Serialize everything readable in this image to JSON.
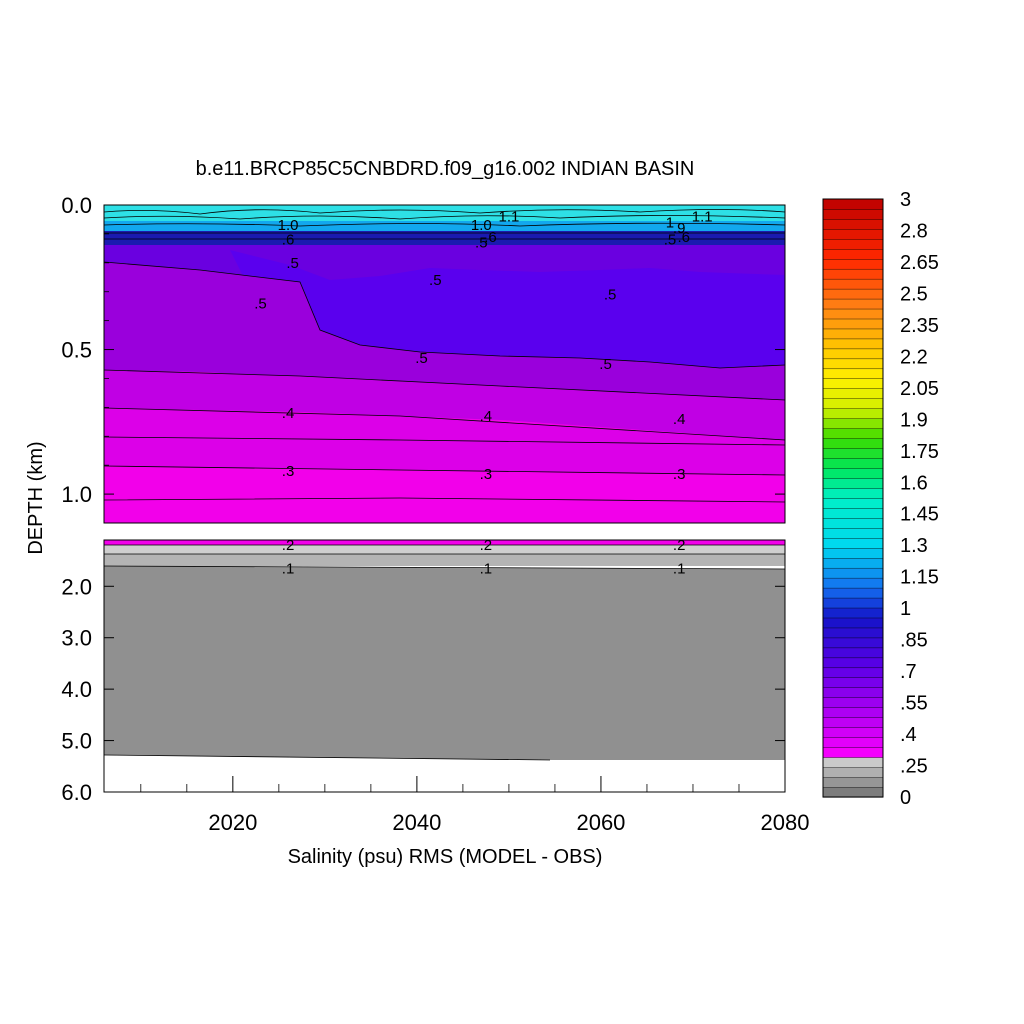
{
  "chart_data": {
    "type": "heatmap",
    "title": "b.e11.BRCP85C5CNBDRD.f09_g16.002 INDIAN BASIN",
    "xlabel": "Salinity (psu) RMS (MODEL - OBS)",
    "ylabel": "DEPTH (km)",
    "xlim": [
      2006,
      2080
    ],
    "x_ticks": [
      "2020",
      "2040",
      "2060",
      "2080"
    ],
    "upper_panel": {
      "ylim": [
        0.0,
        1.1
      ],
      "y_ticks": [
        "0.0",
        "0.5",
        "1.0"
      ]
    },
    "lower_panel": {
      "ylim": [
        1.1,
        6.0
      ],
      "y_ticks": [
        "2.0",
        "3.0",
        "4.0",
        "5.0",
        "6.0"
      ]
    },
    "colorbar": {
      "range": [
        0,
        3
      ],
      "labels": [
        "3",
        "2.8",
        "2.65",
        "2.5",
        "2.35",
        "2.2",
        "2.05",
        "1.9",
        "1.75",
        "1.6",
        "1.45",
        "1.3",
        "1.15",
        "1",
        ".85",
        ".7",
        ".55",
        ".4",
        ".25",
        "0"
      ]
    },
    "contour_labels": [
      {
        "x": 2026,
        "depth": 0.07,
        "text": "1.0"
      },
      {
        "x": 2026,
        "depth": 0.12,
        "text": ".6"
      },
      {
        "x": 2026.5,
        "depth": 0.2,
        "text": ".5"
      },
      {
        "x": 2023,
        "depth": 0.34,
        "text": ".5"
      },
      {
        "x": 2042,
        "depth": 0.26,
        "text": ".5"
      },
      {
        "x": 2047,
        "depth": 0.07,
        "text": "1.0"
      },
      {
        "x": 2050,
        "depth": 0.04,
        "text": "1.1"
      },
      {
        "x": 2047,
        "depth": 0.13,
        "text": ".5"
      },
      {
        "x": 2048,
        "depth": 0.11,
        "text": ".6"
      },
      {
        "x": 2061,
        "depth": 0.31,
        "text": ".5"
      },
      {
        "x": 2040.5,
        "depth": 0.53,
        "text": ".5"
      },
      {
        "x": 2060.5,
        "depth": 0.55,
        "text": ".5"
      },
      {
        "x": 2067.5,
        "depth": 0.06,
        "text": "1"
      },
      {
        "x": 2068.5,
        "depth": 0.08,
        "text": ".9"
      },
      {
        "x": 2071,
        "depth": 0.04,
        "text": "1.1"
      },
      {
        "x": 2067.5,
        "depth": 0.12,
        "text": ".5"
      },
      {
        "x": 2069,
        "depth": 0.11,
        "text": ".6"
      },
      {
        "x": 2026,
        "depth": 0.72,
        "text": ".4"
      },
      {
        "x": 2047.5,
        "depth": 0.73,
        "text": ".4"
      },
      {
        "x": 2068.5,
        "depth": 0.74,
        "text": ".4"
      },
      {
        "x": 2026,
        "depth": 0.92,
        "text": ".3"
      },
      {
        "x": 2047.5,
        "depth": 0.93,
        "text": ".3"
      },
      {
        "x": 2068.5,
        "depth": 0.93,
        "text": ".3"
      },
      {
        "x": 2026,
        "depth": 1.2,
        "text": ".2"
      },
      {
        "x": 2047.5,
        "depth": 1.2,
        "text": ".2"
      },
      {
        "x": 2068.5,
        "depth": 1.2,
        "text": ".2"
      },
      {
        "x": 2026,
        "depth": 1.65,
        "text": ".1"
      },
      {
        "x": 2047.5,
        "depth": 1.65,
        "text": ".1"
      },
      {
        "x": 2068.5,
        "depth": 1.65,
        "text": ".1"
      }
    ]
  }
}
